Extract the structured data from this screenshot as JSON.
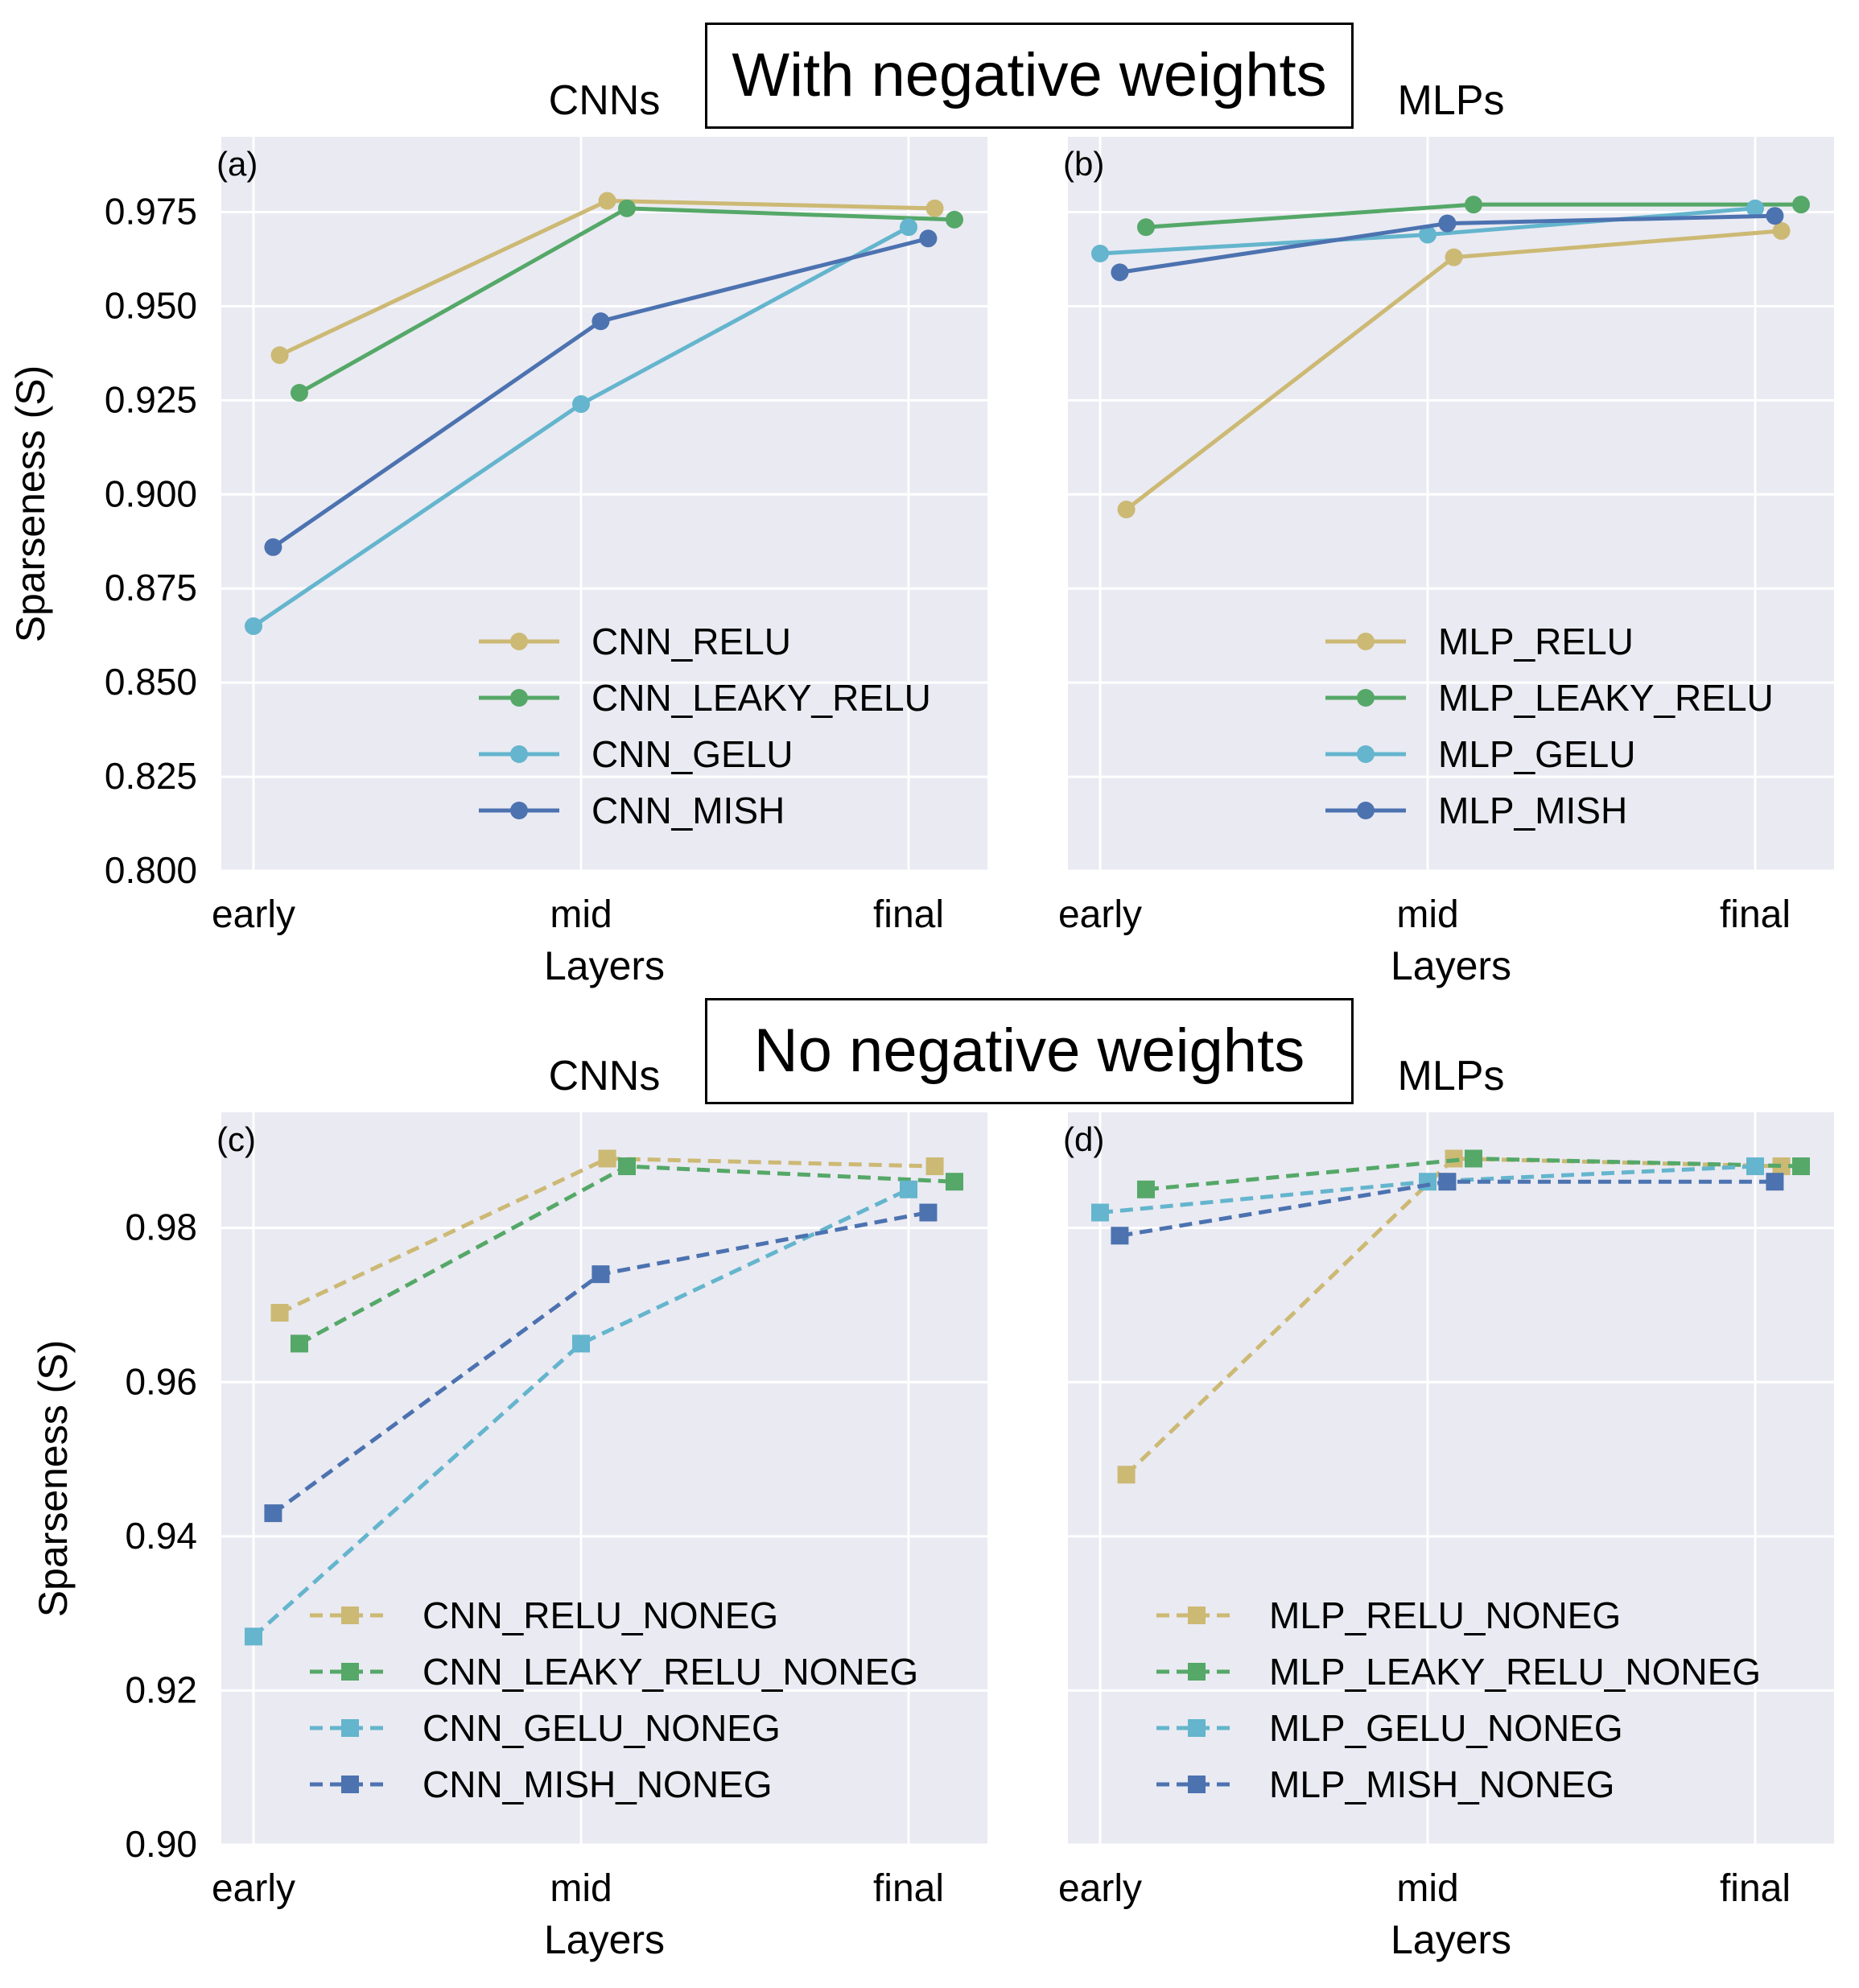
{
  "section_titles": [
    "With negative weights",
    "No negative weights"
  ],
  "colors": {
    "relu": "#ccb974",
    "leaky_relu": "#55a868",
    "gelu": "#64b5cd",
    "mish": "#4c72b0",
    "panel_bg": "#eaeaf2",
    "grid": "#ffffff"
  },
  "chart_data": [
    {
      "type": "line",
      "panel_label": "(a)",
      "title": "CNNs",
      "xlabel": "Layers",
      "ylabel": "Sparseness (S)",
      "categories": [
        "early",
        "mid",
        "final"
      ],
      "ylim": [
        0.8,
        0.995
      ],
      "yticks": [
        "0.800",
        "0.825",
        "0.850",
        "0.875",
        "0.900",
        "0.925",
        "0.950",
        "0.975"
      ],
      "ytick_values": [
        0.8,
        0.825,
        0.85,
        0.875,
        0.9,
        0.925,
        0.95,
        0.975
      ],
      "marker": "circle",
      "dashed": false,
      "legend_position": "lower-right",
      "series": [
        {
          "name": "CNN_RELU",
          "color_key": "relu",
          "x": [
            0.08,
            1.08,
            2.08
          ],
          "values": [
            0.937,
            0.978,
            0.976
          ]
        },
        {
          "name": "CNN_LEAKY_RELU",
          "color_key": "leaky_relu",
          "x": [
            0.14,
            1.14,
            2.14
          ],
          "values": [
            0.927,
            0.976,
            0.973
          ]
        },
        {
          "name": "CNN_GELU",
          "color_key": "gelu",
          "x": [
            0.0,
            1.0,
            2.0
          ],
          "values": [
            0.865,
            0.924,
            0.971
          ]
        },
        {
          "name": "CNN_MISH",
          "color_key": "mish",
          "x": [
            0.06,
            1.06,
            2.06
          ],
          "values": [
            0.886,
            0.946,
            0.968
          ]
        }
      ]
    },
    {
      "type": "line",
      "panel_label": "(b)",
      "title": "MLPs",
      "xlabel": "Layers",
      "ylabel": "",
      "categories": [
        "early",
        "mid",
        "final"
      ],
      "ylim": [
        0.8,
        0.995
      ],
      "yticks": [],
      "ytick_values": [
        0.8,
        0.825,
        0.85,
        0.875,
        0.9,
        0.925,
        0.95,
        0.975
      ],
      "marker": "circle",
      "dashed": false,
      "legend_position": "lower-right",
      "series": [
        {
          "name": "MLP_RELU",
          "color_key": "relu",
          "x": [
            0.08,
            1.08,
            2.08
          ],
          "values": [
            0.896,
            0.963,
            0.97
          ]
        },
        {
          "name": "MLP_LEAKY_RELU",
          "color_key": "leaky_relu",
          "x": [
            0.14,
            1.14,
            2.14
          ],
          "values": [
            0.971,
            0.977,
            0.977
          ]
        },
        {
          "name": "MLP_GELU",
          "color_key": "gelu",
          "x": [
            0.0,
            1.0,
            2.0
          ],
          "values": [
            0.964,
            0.969,
            0.976
          ]
        },
        {
          "name": "MLP_MISH",
          "color_key": "mish",
          "x": [
            0.06,
            1.06,
            2.06
          ],
          "values": [
            0.959,
            0.972,
            0.974
          ]
        }
      ]
    },
    {
      "type": "line",
      "panel_label": "(c)",
      "title": "CNNs",
      "xlabel": "Layers",
      "ylabel": "Sparseness (S)",
      "categories": [
        "early",
        "mid",
        "final"
      ],
      "ylim": [
        0.9,
        0.995
      ],
      "yticks": [
        "0.90",
        "0.92",
        "0.94",
        "0.96",
        "0.98"
      ],
      "ytick_values": [
        0.9,
        0.92,
        0.94,
        0.96,
        0.98
      ],
      "marker": "square",
      "dashed": true,
      "legend_position": "lower-right",
      "series": [
        {
          "name": "CNN_RELU_NONEG",
          "color_key": "relu",
          "x": [
            0.08,
            1.08,
            2.08
          ],
          "values": [
            0.969,
            0.989,
            0.988
          ]
        },
        {
          "name": "CNN_LEAKY_RELU_NONEG",
          "color_key": "leaky_relu",
          "x": [
            0.14,
            1.14,
            2.14
          ],
          "values": [
            0.965,
            0.988,
            0.986
          ]
        },
        {
          "name": "CNN_GELU_NONEG",
          "color_key": "gelu",
          "x": [
            0.0,
            1.0,
            2.0
          ],
          "values": [
            0.927,
            0.965,
            0.985
          ]
        },
        {
          "name": "CNN_MISH_NONEG",
          "color_key": "mish",
          "x": [
            0.06,
            1.06,
            2.06
          ],
          "values": [
            0.943,
            0.974,
            0.982
          ]
        }
      ]
    },
    {
      "type": "line",
      "panel_label": "(d)",
      "title": "MLPs",
      "xlabel": "Layers",
      "ylabel": "",
      "categories": [
        "early",
        "mid",
        "final"
      ],
      "ylim": [
        0.9,
        0.995
      ],
      "yticks": [],
      "ytick_values": [
        0.9,
        0.92,
        0.94,
        0.96,
        0.98
      ],
      "marker": "square",
      "dashed": true,
      "legend_position": "lower-right",
      "series": [
        {
          "name": "MLP_RELU_NONEG",
          "color_key": "relu",
          "x": [
            0.08,
            1.08,
            2.08
          ],
          "values": [
            0.948,
            0.989,
            0.988
          ]
        },
        {
          "name": "MLP_LEAKY_RELU_NONEG",
          "color_key": "leaky_relu",
          "x": [
            0.14,
            1.14,
            2.14
          ],
          "values": [
            0.985,
            0.989,
            0.988
          ]
        },
        {
          "name": "MLP_GELU_NONEG",
          "color_key": "gelu",
          "x": [
            0.0,
            1.0,
            2.0
          ],
          "values": [
            0.982,
            0.986,
            0.988
          ]
        },
        {
          "name": "MLP_MISH_NONEG",
          "color_key": "mish",
          "x": [
            0.06,
            1.06,
            2.06
          ],
          "values": [
            0.979,
            0.986,
            0.986
          ]
        }
      ]
    }
  ]
}
